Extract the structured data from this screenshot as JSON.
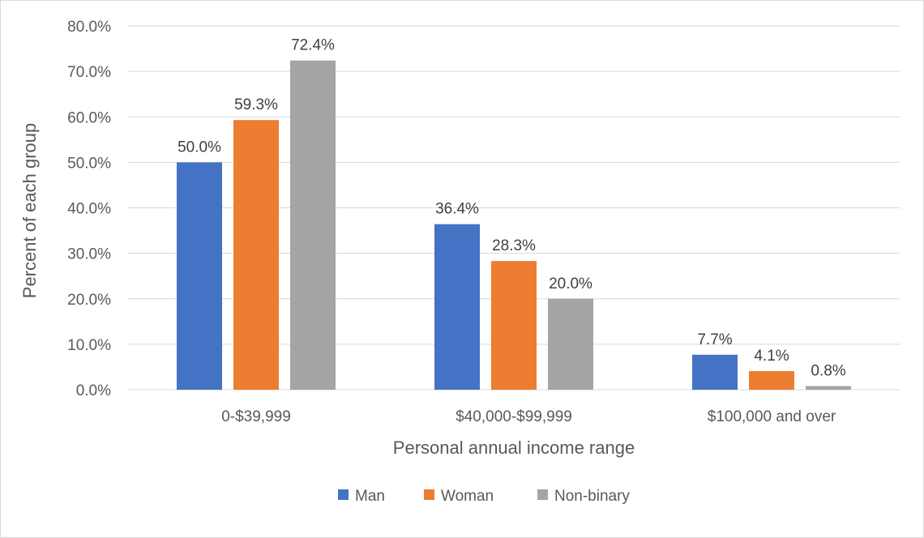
{
  "chart_data": {
    "type": "bar",
    "title": "",
    "xlabel": "Personal annual income range",
    "ylabel": "Percent of each group",
    "categories": [
      "0-$39,999",
      "$40,000-$99,999",
      "$100,000 and over"
    ],
    "series": [
      {
        "name": "Man",
        "color": "#4472c4",
        "values": [
          50.0,
          36.4,
          7.7
        ]
      },
      {
        "name": "Woman",
        "color": "#ed7d31",
        "values": [
          59.3,
          28.3,
          4.1
        ]
      },
      {
        "name": "Non-binary",
        "color": "#a5a5a5",
        "values": [
          72.4,
          20.0,
          0.8
        ]
      }
    ],
    "ylim": [
      0,
      80
    ],
    "yticks": [
      0,
      10,
      20,
      30,
      40,
      50,
      60,
      70,
      80
    ],
    "ytick_labels": [
      "0.0%",
      "10.0%",
      "20.0%",
      "30.0%",
      "40.0%",
      "50.0%",
      "60.0%",
      "70.0%",
      "80.0%"
    ],
    "data_labels": [
      [
        "50.0%",
        "36.4%",
        "7.7%"
      ],
      [
        "59.3%",
        "28.3%",
        "4.1%"
      ],
      [
        "72.4%",
        "20.0%",
        "0.8%"
      ]
    ],
    "grid": true,
    "legend_position": "bottom"
  }
}
